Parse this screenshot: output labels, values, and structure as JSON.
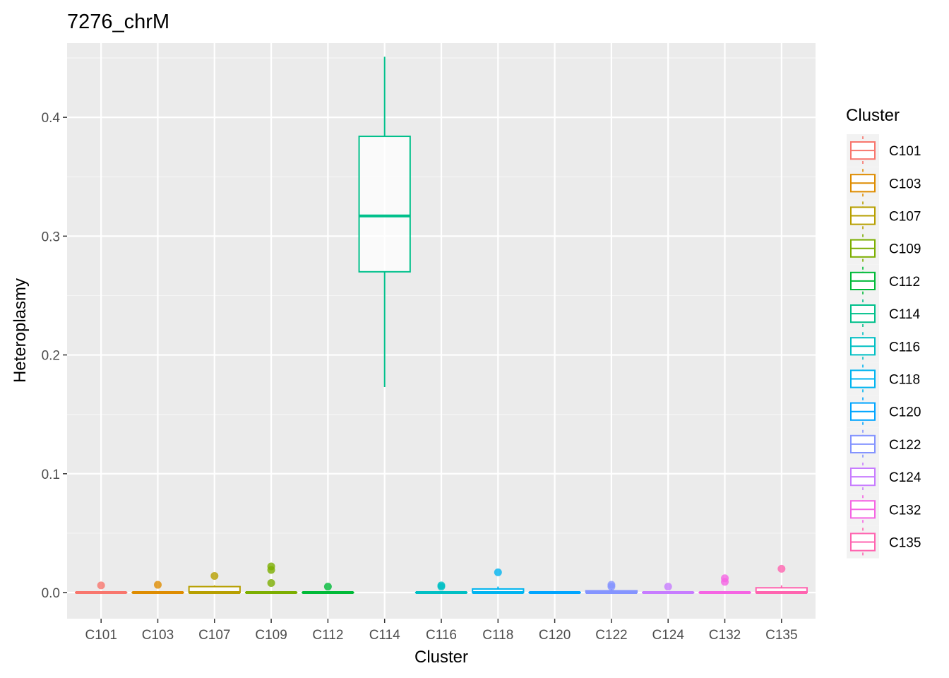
{
  "chart_data": {
    "type": "box",
    "title": "7276_chrM",
    "xlabel": "Cluster",
    "ylabel": "Heteroplasmy",
    "ylim": [
      -0.022,
      0.4625
    ],
    "yticks": [
      "0.0",
      "0.1",
      "0.2",
      "0.3",
      "0.4"
    ],
    "ytick_values": [
      0,
      0.1,
      0.2,
      0.3,
      0.4
    ],
    "grid": true,
    "legend": {
      "title": "Cluster",
      "position": "right"
    },
    "categories": [
      "C101",
      "C103",
      "C107",
      "C109",
      "C112",
      "C114",
      "C116",
      "C118",
      "C120",
      "C122",
      "C124",
      "C132",
      "C135"
    ],
    "colors": [
      "#F8766D",
      "#DE8C00",
      "#B79F00",
      "#7CAE00",
      "#00BA38",
      "#00C08B",
      "#00BFC4",
      "#00B4F0",
      "#00A5FF",
      "#8494FF",
      "#C77CFF",
      "#F564E3",
      "#FF64B0"
    ],
    "boxes": [
      {
        "name": "C101",
        "min": 0,
        "q1": 0,
        "median": 0,
        "q3": 0,
        "max": 0,
        "outliers": [
          0.006
        ]
      },
      {
        "name": "C103",
        "min": 0,
        "q1": 0,
        "median": 0,
        "q3": 0,
        "max": 0,
        "outliers": [
          0.0065
        ]
      },
      {
        "name": "C107",
        "min": 0,
        "q1": 0,
        "median": 0,
        "q3": 0.005,
        "max": 0.006,
        "outliers": [
          0.014
        ]
      },
      {
        "name": "C109",
        "min": 0,
        "q1": 0,
        "median": 0,
        "q3": 0,
        "max": 0,
        "outliers": [
          0.008,
          0.019,
          0.022
        ]
      },
      {
        "name": "C112",
        "min": 0,
        "q1": 0,
        "median": 0,
        "q3": 0,
        "max": 0,
        "outliers": [
          0.005
        ]
      },
      {
        "name": "C114",
        "min": 0.173,
        "q1": 0.27,
        "median": 0.317,
        "q3": 0.384,
        "max": 0.451,
        "outliers": []
      },
      {
        "name": "C116",
        "min": 0,
        "q1": 0,
        "median": 0,
        "q3": 0,
        "max": 0,
        "outliers": [
          0.005,
          0.006
        ]
      },
      {
        "name": "C118",
        "min": 0,
        "q1": 0,
        "median": 0,
        "q3": 0.003,
        "max": 0.005,
        "outliers": [
          0.017
        ]
      },
      {
        "name": "C120",
        "min": 0,
        "q1": 0,
        "median": 0,
        "q3": 0,
        "max": 0,
        "outliers": []
      },
      {
        "name": "C122",
        "min": 0,
        "q1": 0,
        "median": 0,
        "q3": 0.0015,
        "max": 0.003,
        "outliers": [
          0.005,
          0.0065
        ]
      },
      {
        "name": "C124",
        "min": 0,
        "q1": 0,
        "median": 0,
        "q3": 0,
        "max": 0,
        "outliers": [
          0.005
        ]
      },
      {
        "name": "C132",
        "min": 0,
        "q1": 0,
        "median": 0,
        "q3": 0,
        "max": 0,
        "outliers": [
          0.009,
          0.012
        ]
      },
      {
        "name": "C135",
        "min": 0,
        "q1": 0,
        "median": 0,
        "q3": 0.004,
        "max": 0.006,
        "outliers": [
          0.02
        ]
      }
    ]
  }
}
